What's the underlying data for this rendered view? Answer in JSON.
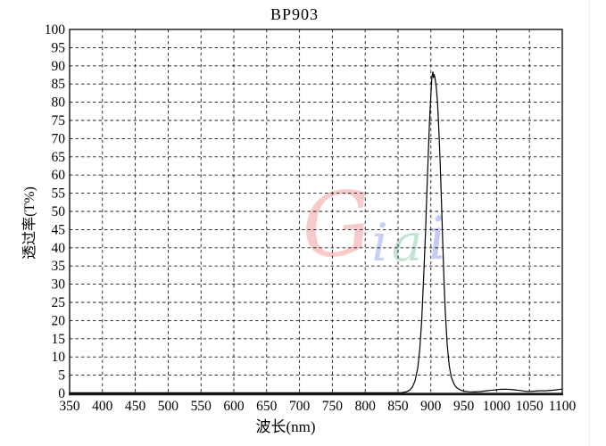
{
  "title": "BP903",
  "watermark": {
    "text": "Giai",
    "letters": [
      {
        "ch": "G",
        "color": "rgba(238,130,130,0.42)"
      },
      {
        "ch": "i",
        "color": "rgba(120,135,228,0.40)"
      },
      {
        "ch": "a",
        "color": "rgba(110,185,140,0.40)"
      },
      {
        "ch": "i",
        "color": "rgba(118,130,230,0.42)"
      }
    ]
  },
  "colors": {
    "curve": "#000000",
    "grid": "#1a1a1a",
    "border": "#000000",
    "background": "#ffffff",
    "edge_artifact": "#ececec"
  },
  "chart_data": {
    "type": "line",
    "title": "BP903",
    "xlabel": "波长(nm)",
    "ylabel": "透过率(T%)",
    "xlim": [
      350,
      1100
    ],
    "ylim": [
      0,
      100
    ],
    "x_ticks": [
      350,
      400,
      450,
      500,
      550,
      600,
      650,
      700,
      750,
      800,
      850,
      900,
      950,
      1000,
      1050,
      1100
    ],
    "y_ticks": [
      0,
      5,
      10,
      15,
      20,
      25,
      30,
      35,
      40,
      45,
      50,
      55,
      60,
      65,
      70,
      75,
      80,
      85,
      90,
      95,
      100
    ],
    "grid": true,
    "grid_style": "dashed",
    "legend": false,
    "series": [
      {
        "name": "BP903 transmittance",
        "color": "#000000",
        "points": [
          [
            350,
            0.15
          ],
          [
            400,
            0.15
          ],
          [
            450,
            0.15
          ],
          [
            500,
            0.15
          ],
          [
            550,
            0.15
          ],
          [
            600,
            0.15
          ],
          [
            650,
            0.15
          ],
          [
            700,
            0.15
          ],
          [
            750,
            0.15
          ],
          [
            800,
            0.15
          ],
          [
            840,
            0.15
          ],
          [
            855,
            0.2
          ],
          [
            862,
            0.4
          ],
          [
            868,
            0.9
          ],
          [
            872,
            1.8
          ],
          [
            876,
            3.5
          ],
          [
            880,
            7
          ],
          [
            883,
            12
          ],
          [
            886,
            20
          ],
          [
            889,
            32
          ],
          [
            892,
            45
          ],
          [
            894,
            56
          ],
          [
            896,
            66
          ],
          [
            898,
            75
          ],
          [
            900,
            82
          ],
          [
            901,
            85.5
          ],
          [
            902,
            87.5
          ],
          [
            903,
            88.3
          ],
          [
            904,
            86.8
          ],
          [
            905,
            87.6
          ],
          [
            906,
            86.9
          ],
          [
            908,
            84.5
          ],
          [
            910,
            80
          ],
          [
            912,
            73
          ],
          [
            914,
            64
          ],
          [
            916,
            53
          ],
          [
            918,
            42
          ],
          [
            920,
            31
          ],
          [
            922,
            22
          ],
          [
            925,
            13
          ],
          [
            928,
            7.5
          ],
          [
            931,
            4.5
          ],
          [
            935,
            2.6
          ],
          [
            939,
            1.6
          ],
          [
            944,
            1.0
          ],
          [
            950,
            0.6
          ],
          [
            958,
            0.45
          ],
          [
            966,
            0.4
          ],
          [
            975,
            0.5
          ],
          [
            985,
            0.7
          ],
          [
            995,
            0.9
          ],
          [
            1005,
            1.1
          ],
          [
            1015,
            1.15
          ],
          [
            1025,
            1.0
          ],
          [
            1035,
            0.8
          ],
          [
            1045,
            0.55
          ],
          [
            1055,
            0.6
          ],
          [
            1065,
            0.7
          ],
          [
            1075,
            0.7
          ],
          [
            1085,
            0.85
          ],
          [
            1095,
            1.05
          ],
          [
            1100,
            1.2
          ]
        ]
      }
    ]
  }
}
